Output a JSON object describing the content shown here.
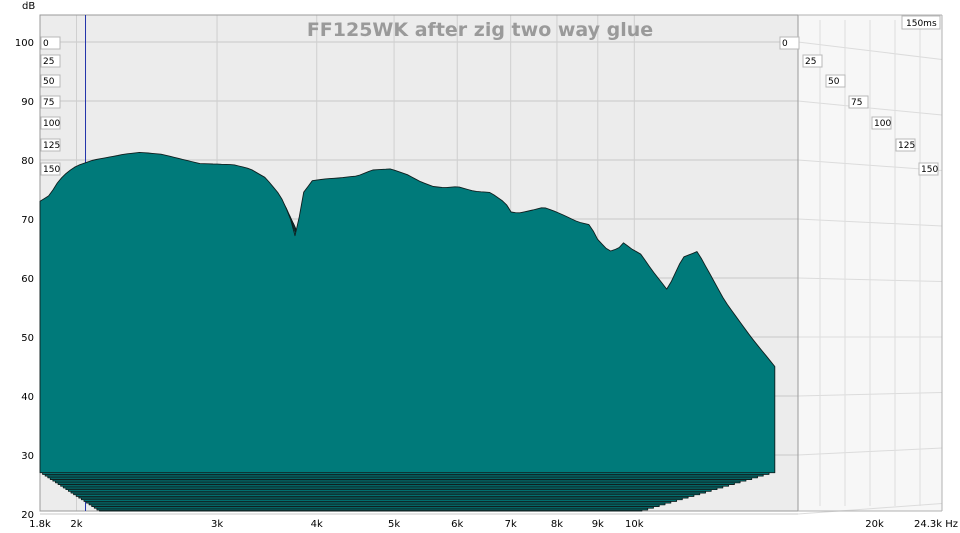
{
  "chart_data": {
    "type": "waterfall",
    "title": "FF125WK after zig two way glue",
    "ylabel": "dB",
    "xlabel": "Hz",
    "ylim": [
      20,
      105
    ],
    "xlim_hz": [
      1800,
      24300
    ],
    "x_scale": "log",
    "grid": true,
    "y_ticks": [
      "100",
      "90",
      "80",
      "70",
      "60",
      "50",
      "40",
      "30",
      "20"
    ],
    "x_ticks": [
      "1.8k",
      "2k",
      "3k",
      "4k",
      "5k",
      "6k",
      "7k",
      "8k",
      "9k",
      "10k",
      "20k",
      "24.3k Hz"
    ],
    "time_labels_left": [
      "0",
      "25",
      "50",
      "75",
      "100",
      "125",
      "150"
    ],
    "time_labels_right": [
      "0",
      "25",
      "50",
      "75",
      "100",
      "125",
      "150"
    ],
    "time_axis_label": "150ms",
    "marker_freq_hz": 2000,
    "fill_color": "#007a7a",
    "edge_color": "#0f1f1f",
    "slice_count": 30,
    "front_slice": {
      "freq_hz": [
        1800,
        1850,
        1900,
        1950,
        2000,
        2100,
        2200,
        2300,
        2400,
        2550,
        2700,
        2850,
        3000,
        3150,
        3300,
        3450,
        3600,
        3700,
        3760,
        3800,
        3850,
        3950,
        4100,
        4300,
        4500,
        4700,
        4950,
        5200,
        5400,
        5600,
        5800,
        6000,
        6300,
        6600,
        6900,
        7000,
        7150,
        7400,
        7700,
        7950,
        8200,
        8500,
        8800,
        9000,
        9300,
        9550,
        9700,
        9900,
        10200,
        10500,
        11000,
        11500,
        12000,
        13000,
        14000,
        15000
      ],
      "db": [
        73,
        74,
        76.5,
        78,
        79,
        80,
        80.5,
        81,
        81.3,
        81,
        80.2,
        79.4,
        79.3,
        79.2,
        78.5,
        77,
        74,
        70.5,
        67,
        70,
        74.5,
        76.5,
        76.8,
        77,
        77.3,
        78.3,
        78.5,
        77.5,
        76.3,
        75.5,
        75.3,
        75.5,
        74.7,
        74.5,
        72.7,
        71.2,
        71,
        71.4,
        72,
        71.3,
        70.5,
        69.5,
        69,
        66.5,
        64.5,
        65,
        66,
        65,
        64,
        61.5,
        58,
        63.5,
        64.5,
        56,
        50,
        45
      ]
    }
  }
}
